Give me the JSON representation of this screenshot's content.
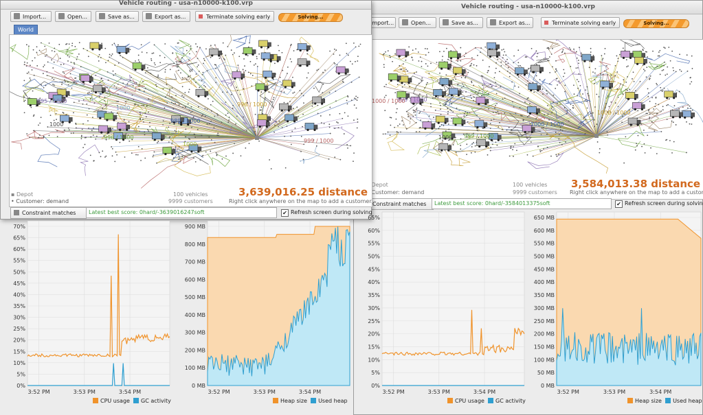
{
  "colors": {
    "orange": "#f0932b",
    "blue": "#2f9fd0",
    "heap_fill": "#fad9b0",
    "used_fill": "#bfe8f6",
    "distance": "#d2691e",
    "score": "#3c9a3c"
  },
  "left_window": {
    "title": "Vehicle routing - usa-n10000-k100.vrp",
    "toolbar": {
      "import": "Import...",
      "open": "Open...",
      "save": "Save as...",
      "export": "Export as...",
      "terminate": "Terminate solving early",
      "solving": "Solving..."
    },
    "tab": "World",
    "distance": "3,639,016.25 distance",
    "hint": "Right click anywhere on the map to add a customer.",
    "legend_depot": "Depot",
    "legend_customer": "Customer: demand",
    "vehicles": "100 vehicles",
    "customers": "9999 customers",
    "constraint_button": "Constraint matches",
    "best_score": "Latest best score: 0hard/-3639016247soft",
    "refresh": "Refresh screen during solving",
    "map_labels": [
      "995 / 1000",
      "996 / 1000",
      "989 / 1000",
      "996 / 1000",
      "999 / 1000",
      "1000",
      "1000",
      "1000"
    ]
  },
  "right_window": {
    "title": "Vehicle routing - usa-n10000-k100.vrp",
    "toolbar": {
      "import": "Import...",
      "open": "Open...",
      "save": "Save as...",
      "export": "Export as...",
      "terminate": "Terminate solving early",
      "solving": "Solving..."
    },
    "distance": "3,584,013.38 distance",
    "hint": "Right click anywhere on the map to add a customer.",
    "legend_depot": "Depot",
    "legend_customer": "Customer: demand",
    "vehicles": "100 vehicles",
    "customers": "9999 customers",
    "constraint_button": "Constraint matches",
    "best_score": "Latest best score: 0hard/-3584013375soft",
    "refresh": "Refresh screen during solving",
    "map_labels": [
      "999 / 1000",
      "999 / 1000",
      "1000 / 1000",
      "1000 / 1000",
      "1000 / 1000",
      "1000"
    ]
  },
  "chart_data": [
    {
      "type": "line",
      "ylabels": [
        "0%",
        "5%",
        "10%",
        "15%",
        "20%",
        "25%",
        "30%",
        "35%",
        "40%",
        "45%",
        "50%",
        "55%",
        "60%",
        "65%",
        "70%"
      ],
      "xlabels": [
        "3:52 PM",
        "3:53 PM",
        "3:54 PM"
      ],
      "series": [
        {
          "name": "CPU usage"
        },
        {
          "name": "GC activity"
        }
      ]
    },
    {
      "type": "area",
      "ylabels": [
        "0 MB",
        "100 MB",
        "200 MB",
        "300 MB",
        "400 MB",
        "500 MB",
        "600 MB",
        "700 MB",
        "800 MB",
        "900 MB"
      ],
      "xlabels": [
        "3:52 PM",
        "3:53 PM",
        "3:54 PM"
      ],
      "series": [
        {
          "name": "Heap size"
        },
        {
          "name": "Used heap"
        }
      ]
    },
    {
      "type": "line",
      "ylabels": [
        "0%",
        "5%",
        "10%",
        "15%",
        "20%",
        "25%",
        "30%",
        "35%",
        "40%",
        "45%",
        "50%",
        "55%",
        "60%",
        "65%"
      ],
      "xlabels": [
        "3:52 PM",
        "3:53 PM",
        "3:54 PM"
      ],
      "series": [
        {
          "name": "CPU usage"
        },
        {
          "name": "GC activity"
        }
      ]
    },
    {
      "type": "area",
      "ylabels": [
        "0 MB",
        "50 MB",
        "100 MB",
        "150 MB",
        "200 MB",
        "250 MB",
        "300 MB",
        "350 MB",
        "400 MB",
        "450 MB",
        "500 MB",
        "550 MB",
        "600 MB",
        "650 MB"
      ],
      "xlabels": [
        "3:52 PM",
        "3:53 PM",
        "3:54 PM"
      ],
      "series": [
        {
          "name": "Heap size"
        },
        {
          "name": "Used heap"
        }
      ]
    }
  ]
}
